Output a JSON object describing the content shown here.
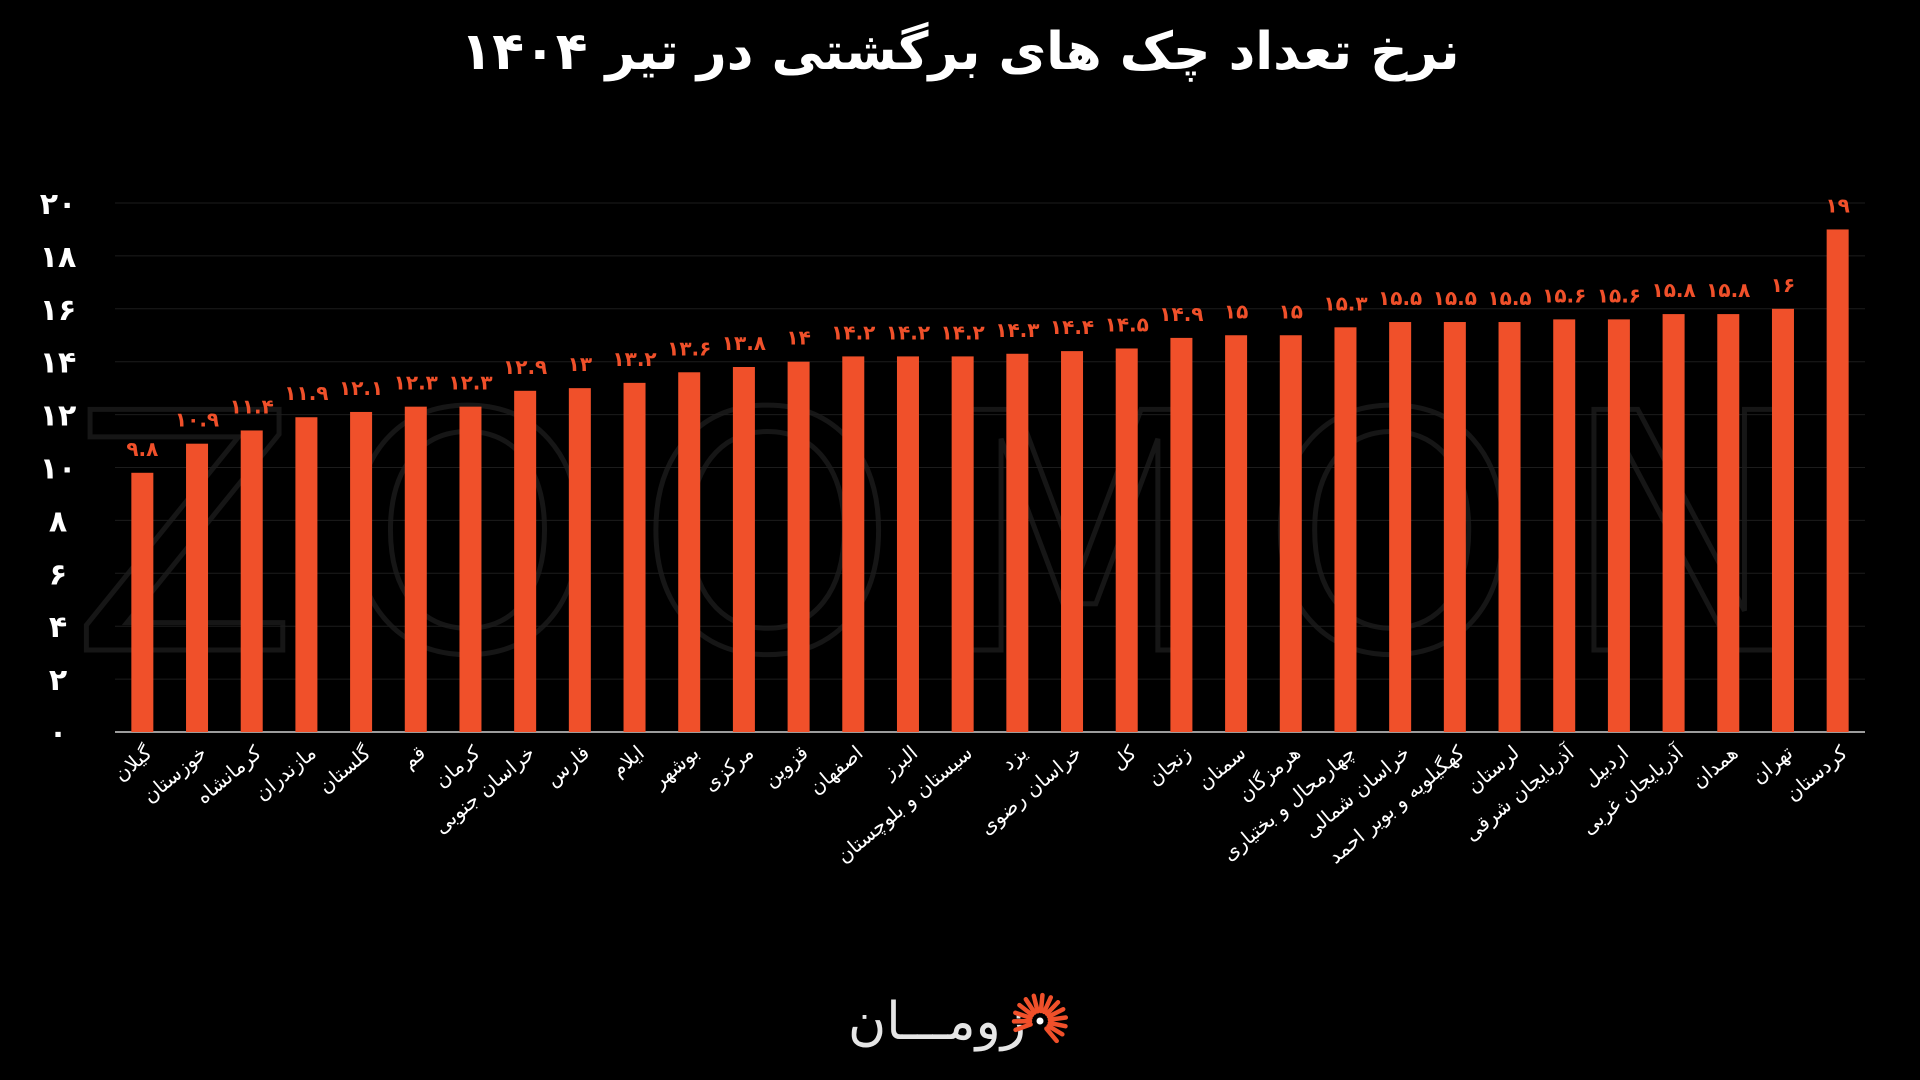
{
  "chart_data": {
    "type": "bar",
    "title": "نرخ تعداد چک های برگشتی در تیر ۱۴۰۴",
    "xlabel": "",
    "ylabel": "",
    "ylim": [
      0,
      20
    ],
    "y_ticks": [
      "۰",
      "۲",
      "۴",
      "۶",
      "۸",
      "۱۰",
      "۱۲",
      "۱۴",
      "۱۶",
      "۱۸",
      "۲۰"
    ],
    "grid": true,
    "categories": [
      "گیلان",
      "خوزستان",
      "کرمانشاه",
      "مازندران",
      "گلستان",
      "قم",
      "کرمان",
      "خراسان جنوبی",
      "فارس",
      "ایلام",
      "بوشهر",
      "مرکزی",
      "قزوین",
      "اصفهان",
      "البرز",
      "سیستان و بلوچستان",
      "یزد",
      "خراسان رضوی",
      "کل",
      "زنجان",
      "سمنان",
      "هرمزگان",
      "چهارمحال و بختیاری",
      "خراسان شمالی",
      "کهگیلویه و بویر احمد",
      "لرستان",
      "آذربایجان شرقی",
      "اردبیل",
      "آذربایجان غربی",
      "همدان",
      "تهران",
      "کردستان"
    ],
    "values": [
      9.8,
      10.9,
      11.4,
      11.9,
      12.1,
      12.3,
      12.3,
      12.9,
      13,
      13.2,
      13.6,
      13.8,
      14,
      14.2,
      14.2,
      14.2,
      14.3,
      14.4,
      14.5,
      14.9,
      15,
      15,
      15.3,
      15.5,
      15.5,
      15.5,
      15.6,
      15.6,
      15.8,
      15.8,
      16,
      19
    ],
    "value_labels": [
      "۹.۸",
      "۱۰.۹",
      "۱۱.۴",
      "۱۱.۹",
      "۱۲.۱",
      "۱۲.۳",
      "۱۲.۳",
      "۱۲.۹",
      "۱۳",
      "۱۳.۲",
      "۱۳.۶",
      "۱۳.۸",
      "۱۴",
      "۱۴.۲",
      "۱۴.۲",
      "۱۴.۲",
      "۱۴.۳",
      "۱۴.۴",
      "۱۴.۵",
      "۱۴.۹",
      "۱۵",
      "۱۵",
      "۱۵.۳",
      "۱۵.۵",
      "۱۵.۵",
      "۱۵.۵",
      "۱۵.۶",
      "۱۵.۶",
      "۱۵.۸",
      "۱۵.۸",
      "۱۶",
      "۱۹"
    ]
  },
  "colors": {
    "background": "#000000",
    "bar": "#f0502a",
    "value_label": "#f0502a",
    "text": "#ffffff",
    "grid": "#1c1c1c",
    "axis": "#cfcfcf",
    "watermark": "#161616",
    "logo_mark": "#f0502a"
  },
  "watermark": "ZOOMON",
  "logo": {
    "text": "زومـــان",
    "icon": "sunburst-logo-icon"
  }
}
